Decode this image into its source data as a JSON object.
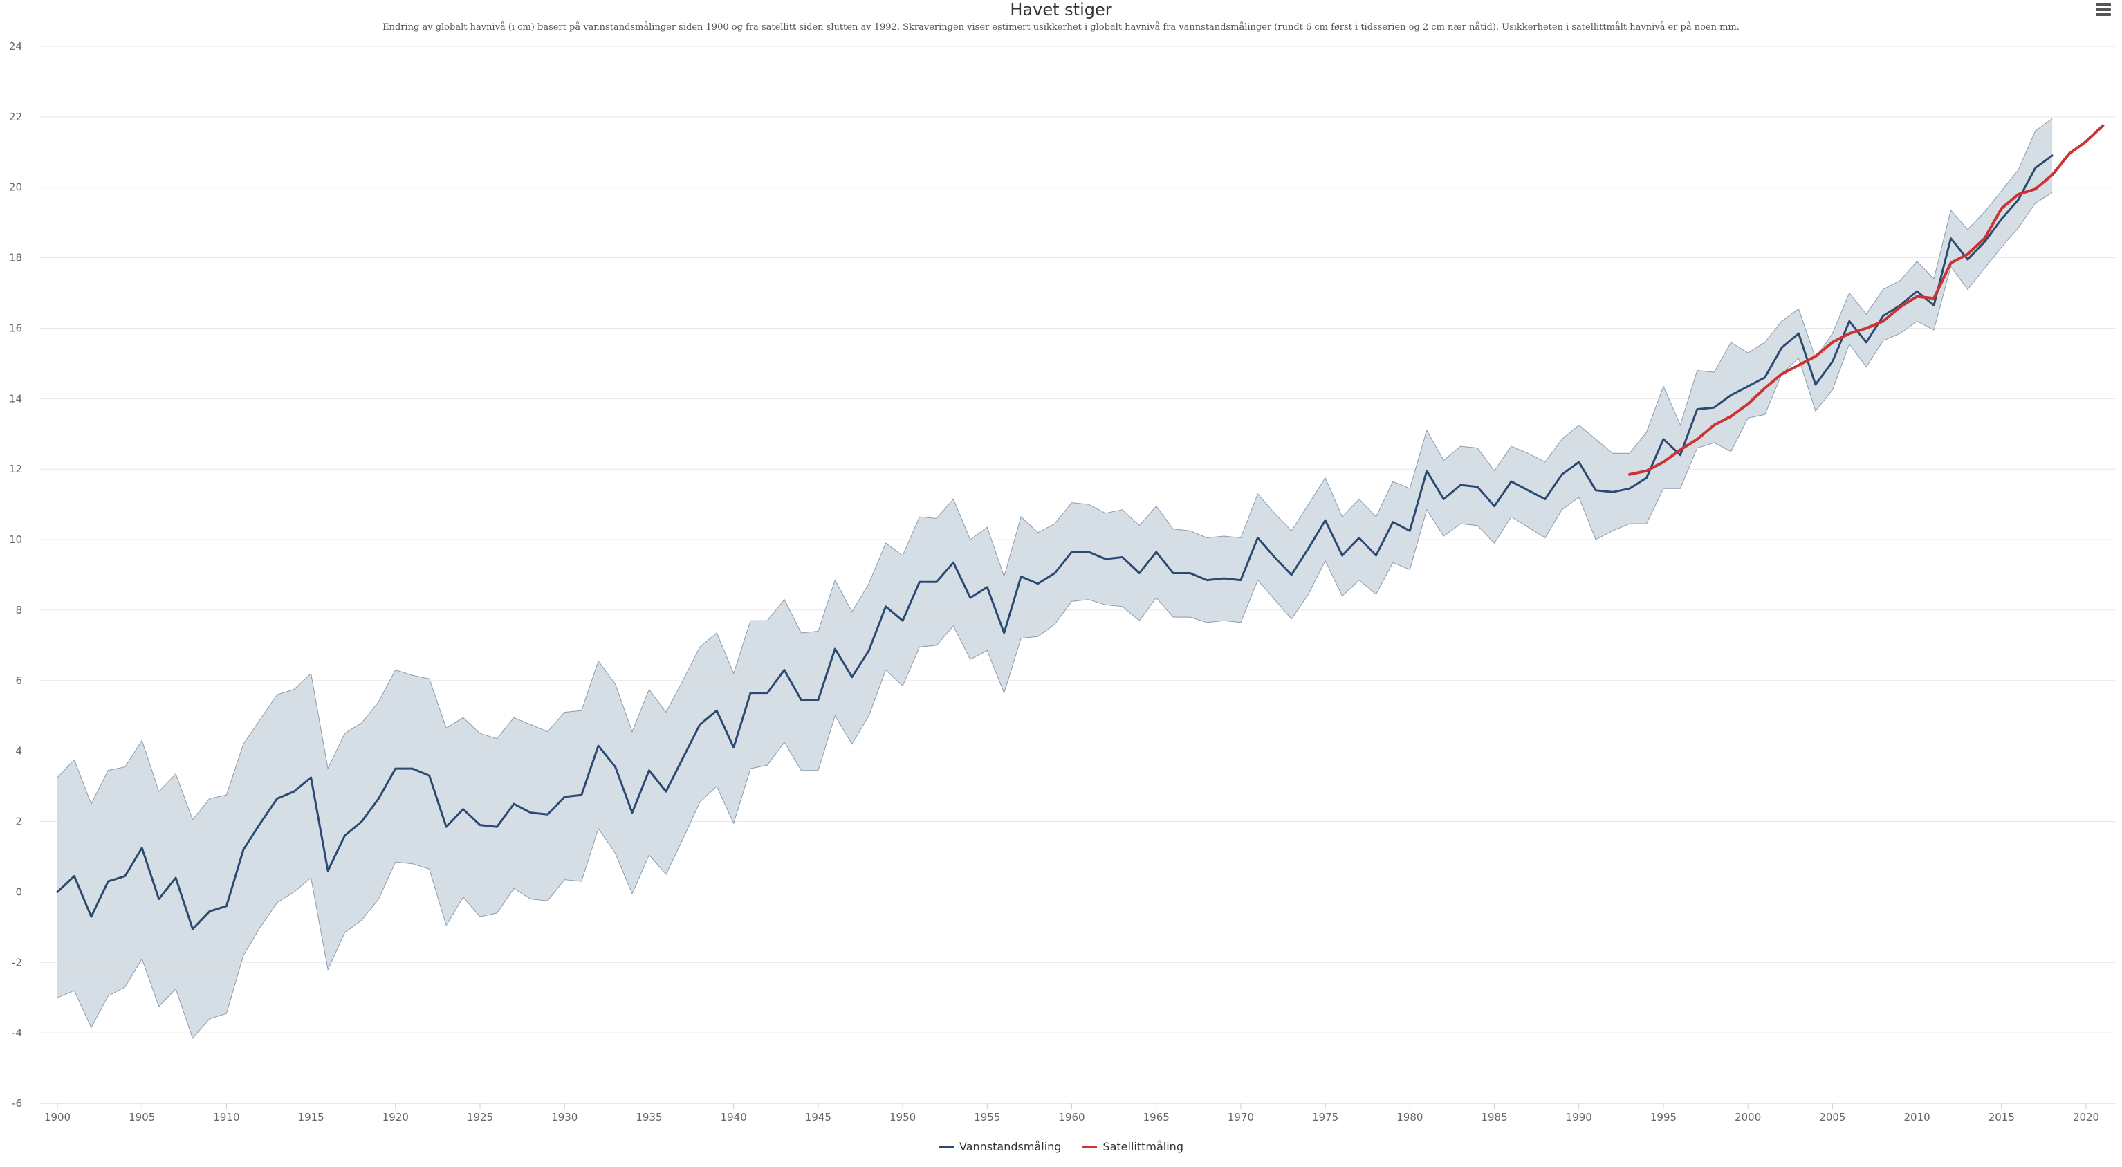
{
  "title": "Havet stiger",
  "subtitle": "Endring av globalt havnivå (i cm) basert på vannstandsmålinger siden 1900 og fra satellitt siden slutten av 1992. Skraveringen viser estimert usikkerhet i globalt havnivå fra vannstandsmålinger (rundt 6 cm først i tidsserien og 2 cm nær nåtid). Usikkerheten i satellittmålt havnivå er på noen mm.",
  "menu_icon": "hamburger-menu-icon",
  "colors": {
    "tide_gauge": "#2b4a72",
    "satellite": "#cc3333",
    "band_fill": "#d4dce4",
    "band_stroke": "#8a9bb0",
    "grid": "#e6e6e6"
  },
  "chart_data": {
    "type": "line",
    "title": "Havet stiger",
    "xlabel": "",
    "ylabel": "",
    "xlim": [
      1900,
      2021
    ],
    "ylim": [
      -6,
      24
    ],
    "grid": true,
    "legend_position": "bottom-center",
    "x_ticks": [
      1900,
      1905,
      1910,
      1915,
      1920,
      1925,
      1930,
      1935,
      1940,
      1945,
      1950,
      1955,
      1960,
      1965,
      1970,
      1975,
      1980,
      1985,
      1990,
      1995,
      2000,
      2005,
      2010,
      2015,
      2020
    ],
    "y_ticks": [
      -6,
      -4,
      -2,
      0,
      2,
      4,
      6,
      8,
      10,
      12,
      14,
      16,
      18,
      20,
      22,
      24
    ],
    "series": [
      {
        "name": "Vannstandsmåling",
        "x_start": 1900,
        "values": [
          0.0,
          0.45,
          -0.7,
          0.3,
          0.45,
          1.25,
          -0.2,
          0.4,
          -1.05,
          -0.55,
          -0.4,
          1.2,
          1.95,
          2.65,
          2.85,
          3.25,
          0.6,
          1.6,
          2.0,
          2.65,
          3.5,
          3.5,
          3.3,
          1.85,
          2.35,
          1.9,
          1.85,
          2.5,
          2.25,
          2.2,
          2.7,
          2.75,
          4.15,
          3.55,
          2.25,
          3.45,
          2.85,
          3.8,
          4.75,
          5.15,
          4.1,
          5.65,
          5.65,
          6.3,
          5.45,
          5.45,
          6.9,
          6.1,
          6.85,
          8.1,
          7.7,
          8.8,
          8.8,
          9.35,
          8.35,
          8.65,
          7.35,
          8.95,
          8.75,
          9.05,
          9.65,
          9.65,
          9.45,
          9.5,
          9.05,
          9.65,
          9.05,
          9.05,
          8.85,
          8.9,
          8.85,
          10.05,
          9.5,
          9.0,
          9.75,
          10.55,
          9.55,
          10.05,
          9.55,
          10.5,
          10.25,
          11.95,
          11.15,
          11.55,
          11.5,
          10.95,
          11.65,
          11.4,
          11.15,
          11.85,
          12.2,
          11.4,
          11.35,
          11.45,
          11.75,
          12.85,
          12.4,
          13.7,
          13.75,
          14.1,
          14.35,
          14.6,
          15.45,
          15.85,
          14.4,
          15.05,
          16.2,
          15.6,
          16.35,
          16.65,
          17.05,
          16.65,
          18.55,
          17.95,
          18.45,
          19.1,
          19.65,
          20.55,
          20.9
        ]
      },
      {
        "name": "Satellittmåling",
        "x_start": 1993,
        "values": [
          11.85,
          11.95,
          12.2,
          12.55,
          12.85,
          13.25,
          13.5,
          13.85,
          14.3,
          14.7,
          14.95,
          15.2,
          15.6,
          15.85,
          16.0,
          16.2,
          16.6,
          16.9,
          16.85,
          17.85,
          18.1,
          18.55,
          19.4,
          19.8,
          19.95,
          20.35,
          20.95,
          21.3,
          21.75
        ]
      }
    ],
    "uncertainty_band": {
      "series": "Vannstandsmåling",
      "x_start": 1900,
      "lower": [
        -3.0,
        -2.8,
        -3.85,
        -2.95,
        -2.7,
        -1.9,
        -3.25,
        -2.75,
        -4.15,
        -3.6,
        -3.45,
        -1.8,
        -1.0,
        -0.3,
        0.0,
        0.4,
        -2.2,
        -1.15,
        -0.8,
        -0.2,
        0.85,
        0.8,
        0.65,
        -0.95,
        -0.15,
        -0.7,
        -0.6,
        0.1,
        -0.2,
        -0.25,
        0.35,
        0.3,
        1.8,
        1.1,
        -0.05,
        1.05,
        0.5,
        1.5,
        2.55,
        3.0,
        1.95,
        3.5,
        3.6,
        4.25,
        3.45,
        3.45,
        5.0,
        4.2,
        5.0,
        6.3,
        5.85,
        6.95,
        7.0,
        7.55,
        6.6,
        6.85,
        5.65,
        7.2,
        7.25,
        7.6,
        8.25,
        8.3,
        8.15,
        8.1,
        7.7,
        8.35,
        7.8,
        7.8,
        7.65,
        7.7,
        7.65,
        8.85,
        8.3,
        7.75,
        8.45,
        9.4,
        8.4,
        8.85,
        8.45,
        9.35,
        9.15,
        10.85,
        10.1,
        10.45,
        10.4,
        9.9,
        10.65,
        10.35,
        10.05,
        10.85,
        11.2,
        10.0,
        10.25,
        10.45,
        10.45,
        11.45,
        11.45,
        12.6,
        12.75,
        12.5,
        13.45,
        13.55,
        14.7,
        15.15,
        13.65,
        14.25,
        15.55,
        14.9,
        15.65,
        15.85,
        16.2,
        15.95,
        17.75,
        17.1,
        17.7,
        18.3,
        18.85,
        19.55,
        19.85
      ],
      "upper": [
        3.25,
        3.75,
        2.5,
        3.45,
        3.55,
        4.3,
        2.85,
        3.35,
        2.05,
        2.65,
        2.75,
        4.2,
        4.9,
        5.6,
        5.75,
        6.2,
        3.5,
        4.5,
        4.8,
        5.4,
        6.3,
        6.15,
        6.05,
        4.65,
        4.95,
        4.5,
        4.35,
        4.95,
        4.75,
        4.55,
        5.1,
        5.15,
        6.55,
        5.9,
        4.55,
        5.75,
        5.1,
        6.0,
        6.95,
        7.35,
        6.2,
        7.7,
        7.7,
        8.3,
        7.35,
        7.4,
        8.85,
        7.95,
        8.75,
        9.9,
        9.55,
        10.65,
        10.6,
        11.15,
        10.0,
        10.35,
        8.95,
        10.65,
        10.2,
        10.45,
        11.05,
        11.0,
        10.75,
        10.85,
        10.4,
        10.95,
        10.3,
        10.25,
        10.05,
        10.1,
        10.05,
        11.3,
        10.75,
        10.25,
        11.0,
        11.75,
        10.65,
        11.15,
        10.65,
        11.65,
        11.45,
        13.1,
        12.25,
        12.65,
        12.6,
        11.95,
        12.65,
        12.45,
        12.2,
        12.85,
        13.25,
        12.85,
        12.45,
        12.45,
        13.05,
        14.35,
        13.25,
        14.8,
        14.75,
        15.6,
        15.3,
        15.6,
        16.2,
        16.55,
        15.15,
        15.85,
        17.0,
        16.4,
        17.1,
        17.35,
        17.9,
        17.4,
        19.35,
        18.8,
        19.3,
        19.9,
        20.5,
        21.6,
        21.95
      ]
    }
  }
}
